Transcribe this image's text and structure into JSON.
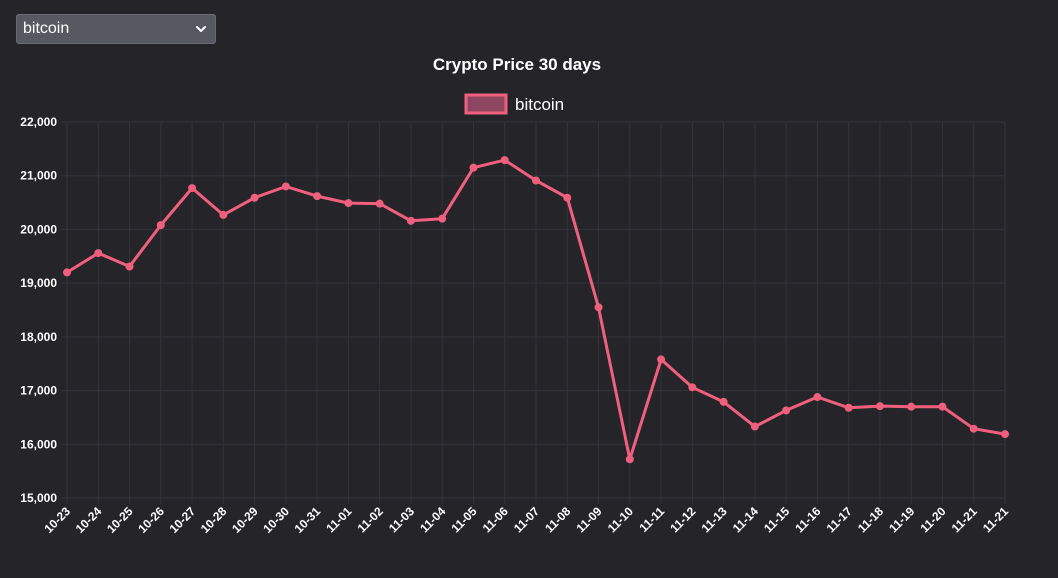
{
  "select": {
    "selected": "bitcoin"
  },
  "colors": {
    "background": "#252429",
    "line": "#f0607e",
    "legend_fill": "#8e4560",
    "grid": "#34333a",
    "text": "#ffffff",
    "select_bg": "#575860"
  },
  "chart_data": {
    "type": "line",
    "title": "Crypto Price 30 days",
    "xlabel": "",
    "ylabel": "",
    "legend_position": "top-center",
    "grid": true,
    "ylim": [
      15000,
      22000
    ],
    "yticks": [
      "15,000",
      "16,000",
      "17,000",
      "18,000",
      "19,000",
      "20,000",
      "21,000",
      "22,000"
    ],
    "categories": [
      "10-23",
      "10-24",
      "10-25",
      "10-26",
      "10-27",
      "10-28",
      "10-29",
      "10-30",
      "10-31",
      "11-01",
      "11-02",
      "11-03",
      "11-04",
      "11-05",
      "11-06",
      "11-07",
      "11-08",
      "11-09",
      "11-10",
      "11-11",
      "11-12",
      "11-13",
      "11-14",
      "11-15",
      "11-16",
      "11-17",
      "11-18",
      "11-19",
      "11-20",
      "11-21",
      "11-21"
    ],
    "series": [
      {
        "name": "bitcoin",
        "values": [
          19200,
          19560,
          19310,
          20080,
          20770,
          20270,
          20590,
          20800,
          20620,
          20490,
          20480,
          20160,
          20200,
          21150,
          21290,
          20910,
          20590,
          18550,
          15720,
          17580,
          17060,
          16790,
          16330,
          16630,
          16880,
          16680,
          16710,
          16700,
          16700,
          16290,
          16190
        ]
      }
    ]
  }
}
